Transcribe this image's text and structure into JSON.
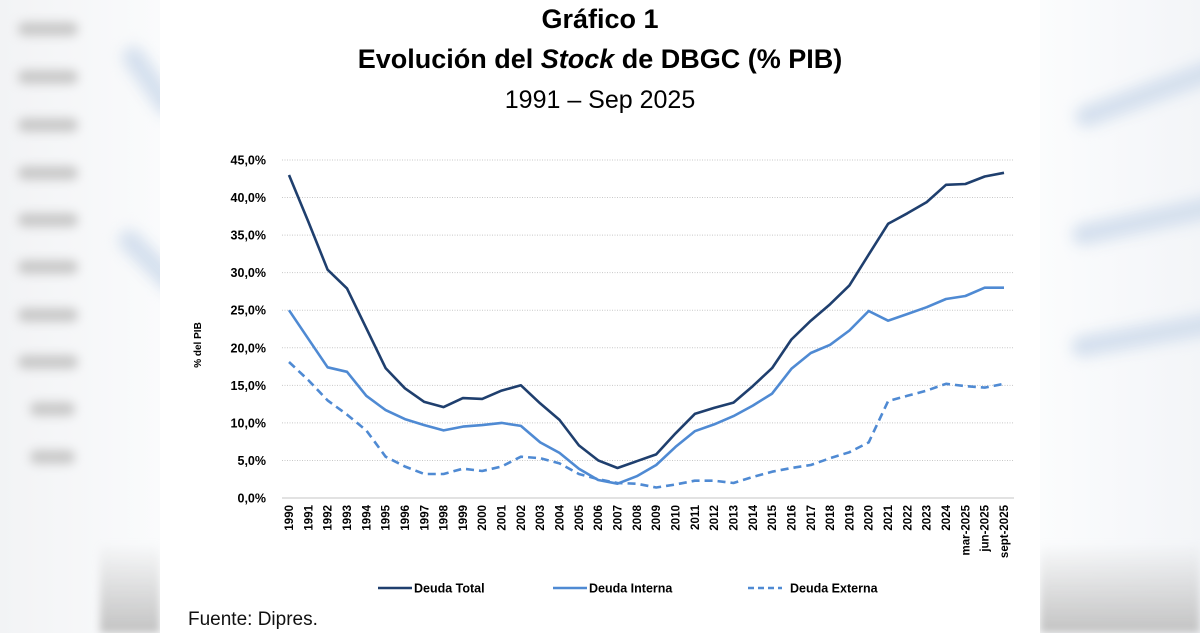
{
  "header": {
    "title_line1": "Gráfico 1",
    "title_line2_prefix": "Evolución del ",
    "title_line2_italic": "Stock",
    "title_line2_suffix": " de DBGC (% PIB)",
    "title_line3": "1991 – Sep 2025"
  },
  "footer": {
    "source": "Fuente: Dipres."
  },
  "colors": {
    "total": "#1f3f6e",
    "interna": "#4f8ad3",
    "externa": "#4f8ad3",
    "grid": "#c8c8c8",
    "axis": "#d9d9d9"
  },
  "chart_data": {
    "type": "line",
    "title": "Evolución del Stock de DBGC (% PIB)",
    "subtitle": "1991 – Sep 2025",
    "xlabel": "",
    "ylabel": "% del PIB",
    "ylim": [
      0,
      45
    ],
    "yticks": [
      0,
      5,
      10,
      15,
      20,
      25,
      30,
      35,
      40,
      45
    ],
    "ytick_labels": [
      "0,0%",
      "5,0%",
      "10,0%",
      "15,0%",
      "20,0%",
      "25,0%",
      "30,0%",
      "35,0%",
      "40,0%",
      "45,0%"
    ],
    "grid": true,
    "legend_position": "bottom",
    "categories": [
      "1990",
      "1991",
      "1992",
      "1993",
      "1994",
      "1995",
      "1996",
      "1997",
      "1998",
      "1999",
      "2000",
      "2001",
      "2002",
      "2003",
      "2004",
      "2005",
      "2006",
      "2007",
      "2008",
      "2009",
      "2010",
      "2011",
      "2012",
      "2013",
      "2014",
      "2015",
      "2016",
      "2017",
      "2018",
      "2019",
      "2020",
      "2021",
      "2022",
      "2023",
      "2024",
      "mar-2025",
      "jun-2025",
      "sept-2025"
    ],
    "series": [
      {
        "name": "Deuda Total",
        "style": "solid",
        "color_key": "total",
        "values": [
          43.0,
          36.8,
          30.4,
          27.9,
          22.6,
          17.3,
          14.6,
          12.8,
          12.1,
          13.3,
          13.2,
          14.3,
          15.0,
          12.6,
          10.4,
          7.0,
          5.0,
          4.0,
          4.9,
          5.8,
          8.6,
          11.2,
          12.0,
          12.7,
          14.9,
          17.3,
          21.1,
          23.6,
          25.8,
          28.3,
          32.4,
          36.5,
          37.9,
          39.4,
          41.7,
          41.8,
          42.8,
          43.3
        ]
      },
      {
        "name": "Deuda Interna",
        "style": "solid",
        "color_key": "interna",
        "values": [
          25.0,
          21.2,
          17.4,
          16.8,
          13.6,
          11.7,
          10.5,
          9.7,
          9.0,
          9.5,
          9.7,
          10.0,
          9.6,
          7.4,
          6.0,
          3.9,
          2.4,
          1.9,
          2.9,
          4.4,
          6.8,
          8.9,
          9.8,
          10.9,
          12.3,
          13.9,
          17.2,
          19.3,
          20.4,
          22.3,
          24.9,
          23.6,
          24.5,
          25.4,
          26.5,
          26.9,
          28.0,
          28.0
        ]
      },
      {
        "name": "Deuda Externa",
        "style": "dashed",
        "color_key": "externa",
        "values": [
          18.1,
          15.7,
          13.0,
          11.1,
          9.0,
          5.5,
          4.2,
          3.2,
          3.2,
          3.9,
          3.6,
          4.2,
          5.5,
          5.3,
          4.6,
          3.2,
          2.5,
          2.0,
          1.9,
          1.4,
          1.8,
          2.3,
          2.3,
          2.0,
          2.8,
          3.5,
          4.0,
          4.4,
          5.3,
          6.1,
          7.4,
          12.9,
          13.6,
          14.3,
          15.2,
          14.9,
          14.7,
          15.2
        ]
      }
    ]
  }
}
